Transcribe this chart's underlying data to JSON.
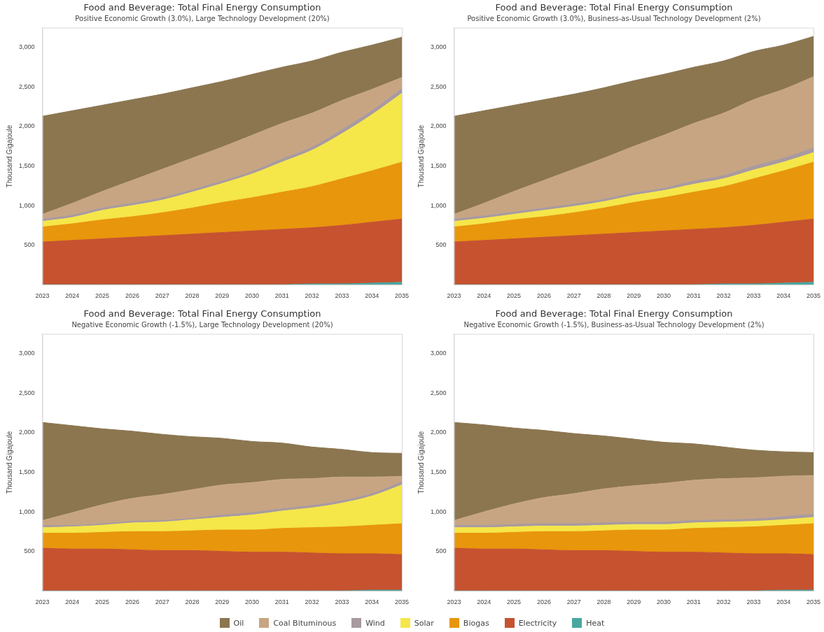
{
  "chart_data": [
    {
      "type": "area",
      "stacked": true,
      "title": "Food and Beverage: Total Final Energy Consumption",
      "subtitle": "Positive Economic Growth (3.0%), Large Technology Development (20%)",
      "ylabel": "Thousand Gigajoule",
      "categories": [
        "2023",
        "2024",
        "2025",
        "2026",
        "2027",
        "2028",
        "2029",
        "2030",
        "2031",
        "2032",
        "2033",
        "2034",
        "2035"
      ],
      "ylim": [
        0,
        3250
      ],
      "yticks": [
        {
          "value": 500,
          "label": "500"
        },
        {
          "value": 1000,
          "label": "1,000"
        },
        {
          "value": 1500,
          "label": "1,500"
        },
        {
          "value": 2000,
          "label": "2,000"
        },
        {
          "value": 2500,
          "label": "2,500"
        },
        {
          "value": 3000,
          "label": "3,000"
        }
      ],
      "grid": false,
      "marker": "none",
      "legend": "bottom",
      "series": [
        {
          "name": "Heat",
          "color": "#4aa7a0",
          "values": [
            0,
            0,
            0,
            0,
            0,
            0,
            0,
            0,
            0,
            10,
            10,
            20,
            30
          ]
        },
        {
          "name": "Electricity",
          "color": "#c65230",
          "values": [
            540,
            560,
            580,
            600,
            620,
            640,
            660,
            680,
            700,
            710,
            740,
            770,
            800
          ]
        },
        {
          "name": "Biogas",
          "color": "#e8960c",
          "values": [
            190,
            210,
            240,
            260,
            290,
            330,
            380,
            420,
            470,
            520,
            590,
            650,
            720
          ]
        },
        {
          "name": "Solar",
          "color": "#f5e64a",
          "values": [
            70,
            80,
            120,
            140,
            160,
            200,
            240,
            300,
            380,
            460,
            570,
            710,
            870
          ]
        },
        {
          "name": "Wind",
          "color": "#a89aa0",
          "values": [
            30,
            30,
            30,
            30,
            30,
            30,
            30,
            30,
            40,
            40,
            50,
            50,
            60
          ]
        },
        {
          "name": "Coal Bituminous",
          "color": "#c8a582",
          "values": [
            60,
            150,
            210,
            290,
            360,
            400,
            430,
            460,
            450,
            430,
            370,
            270,
            140
          ]
        },
        {
          "name": "Oil",
          "color": "#8b7650",
          "values": [
            1240,
            1170,
            1090,
            1020,
            950,
            890,
            830,
            770,
            710,
            660,
            610,
            560,
            510
          ]
        }
      ]
    },
    {
      "type": "area",
      "stacked": true,
      "title": "Food and Beverage: Total Final Energy Consumption",
      "subtitle": "Positive Economic Growth (3.0%), Business-as-Usual Technology Development (2%)",
      "ylabel": "Thousand Gigajoule",
      "categories": [
        "2023",
        "2024",
        "2025",
        "2026",
        "2027",
        "2028",
        "2029",
        "2030",
        "2031",
        "2032",
        "2033",
        "2034",
        "2035"
      ],
      "ylim": [
        0,
        3250
      ],
      "yticks": [
        {
          "value": 500,
          "label": "500"
        },
        {
          "value": 1000,
          "label": "1,000"
        },
        {
          "value": 1500,
          "label": "1,500"
        },
        {
          "value": 2000,
          "label": "2,000"
        },
        {
          "value": 2500,
          "label": "2,500"
        },
        {
          "value": 3000,
          "label": "3,000"
        }
      ],
      "grid": false,
      "marker": "none",
      "series": [
        {
          "color": "#4aa7a0",
          "values": [
            0,
            0,
            0,
            0,
            0,
            0,
            0,
            0,
            0,
            10,
            10,
            20,
            30
          ]
        },
        {
          "color": "#c65230",
          "values": [
            540,
            560,
            580,
            600,
            620,
            640,
            660,
            680,
            700,
            710,
            740,
            770,
            800
          ]
        },
        {
          "color": "#e8960c",
          "values": [
            190,
            210,
            240,
            260,
            290,
            330,
            380,
            420,
            470,
            520,
            590,
            650,
            720
          ]
        },
        {
          "color": "#f5e64a",
          "values": [
            70,
            70,
            70,
            80,
            80,
            80,
            90,
            90,
            100,
            100,
            110,
            110,
            120
          ]
        },
        {
          "color": "#a89aa0",
          "values": [
            30,
            30,
            30,
            30,
            30,
            30,
            30,
            30,
            40,
            40,
            50,
            50,
            60
          ]
        },
        {
          "color": "#c8a582",
          "values": [
            60,
            160,
            260,
            350,
            440,
            520,
            590,
            670,
            730,
            790,
            840,
            870,
            900
          ]
        },
        {
          "color": "#8b7650",
          "values": [
            1240,
            1170,
            1090,
            1020,
            950,
            890,
            830,
            770,
            710,
            660,
            610,
            560,
            510
          ]
        }
      ]
    },
    {
      "type": "area",
      "stacked": true,
      "title": "Food and Beverage: Total Final Energy Consumption",
      "subtitle": "Negative Economic Growth (-1.5%), Large Technology Development (20%)",
      "ylabel": "Thousand Gigajoule",
      "categories": [
        "2023",
        "2024",
        "2025",
        "2026",
        "2027",
        "2028",
        "2029",
        "2030",
        "2031",
        "2032",
        "2033",
        "2034",
        "2035"
      ],
      "ylim": [
        0,
        3250
      ],
      "yticks": [
        {
          "value": 500,
          "label": "500"
        },
        {
          "value": 1000,
          "label": "1,000"
        },
        {
          "value": 1500,
          "label": "1,500"
        },
        {
          "value": 2000,
          "label": "2,000"
        },
        {
          "value": 2500,
          "label": "2,500"
        },
        {
          "value": 3000,
          "label": "3,000"
        }
      ],
      "grid": false,
      "marker": "none",
      "series": [
        {
          "color": "#4aa7a0",
          "values": [
            0,
            0,
            0,
            0,
            0,
            0,
            0,
            0,
            0,
            0,
            0,
            10,
            10
          ]
        },
        {
          "color": "#c65230",
          "values": [
            540,
            530,
            530,
            520,
            510,
            510,
            500,
            490,
            490,
            480,
            470,
            460,
            450
          ]
        },
        {
          "color": "#e8960c",
          "values": [
            190,
            200,
            210,
            230,
            240,
            250,
            270,
            280,
            300,
            320,
            340,
            360,
            390
          ]
        },
        {
          "color": "#f5e64a",
          "values": [
            70,
            80,
            90,
            110,
            120,
            140,
            160,
            190,
            220,
            250,
            300,
            370,
            490
          ]
        },
        {
          "color": "#a89aa0",
          "values": [
            30,
            20,
            20,
            20,
            20,
            20,
            30,
            30,
            30,
            30,
            30,
            30,
            40
          ]
        },
        {
          "color": "#c8a582",
          "values": [
            60,
            160,
            240,
            290,
            330,
            360,
            380,
            380,
            370,
            340,
            300,
            210,
            70
          ]
        },
        {
          "color": "#8b7650",
          "values": [
            1240,
            1100,
            960,
            850,
            760,
            670,
            590,
            520,
            460,
            400,
            350,
            310,
            290
          ]
        }
      ]
    },
    {
      "type": "area",
      "stacked": true,
      "title": "Food and Beverage: Total Final Energy Consumption",
      "subtitle": "Negative Economic Growth (-1.5%), Business-as-Usual Technology Development (2%)",
      "ylabel": "Thousand Gigajoule",
      "categories": [
        "2023",
        "2024",
        "2025",
        "2026",
        "2027",
        "2028",
        "2029",
        "2030",
        "2031",
        "2032",
        "2033",
        "2034",
        "2035"
      ],
      "ylim": [
        0,
        3250
      ],
      "yticks": [
        {
          "value": 500,
          "label": "500"
        },
        {
          "value": 1000,
          "label": "1,000"
        },
        {
          "value": 1500,
          "label": "1,500"
        },
        {
          "value": 2000,
          "label": "2,000"
        },
        {
          "value": 2500,
          "label": "2,500"
        },
        {
          "value": 3000,
          "label": "3,000"
        }
      ],
      "grid": false,
      "marker": "none",
      "series": [
        {
          "color": "#4aa7a0",
          "values": [
            0,
            0,
            0,
            0,
            0,
            0,
            0,
            0,
            0,
            0,
            0,
            10,
            10
          ]
        },
        {
          "color": "#c65230",
          "values": [
            540,
            530,
            530,
            520,
            510,
            510,
            500,
            490,
            490,
            480,
            470,
            460,
            450
          ]
        },
        {
          "color": "#e8960c",
          "values": [
            190,
            200,
            210,
            230,
            240,
            250,
            270,
            280,
            300,
            320,
            340,
            360,
            390
          ]
        },
        {
          "color": "#f5e64a",
          "values": [
            70,
            70,
            70,
            70,
            70,
            70,
            70,
            70,
            70,
            70,
            70,
            70,
            80
          ]
        },
        {
          "color": "#a89aa0",
          "values": [
            30,
            30,
            30,
            30,
            30,
            30,
            30,
            30,
            30,
            30,
            30,
            40,
            40
          ]
        },
        {
          "color": "#c8a582",
          "values": [
            60,
            170,
            260,
            330,
            380,
            430,
            460,
            490,
            510,
            520,
            520,
            510,
            490
          ]
        },
        {
          "color": "#8b7650",
          "values": [
            1240,
            1100,
            960,
            850,
            760,
            670,
            590,
            520,
            460,
            400,
            350,
            310,
            290
          ]
        }
      ]
    }
  ]
}
